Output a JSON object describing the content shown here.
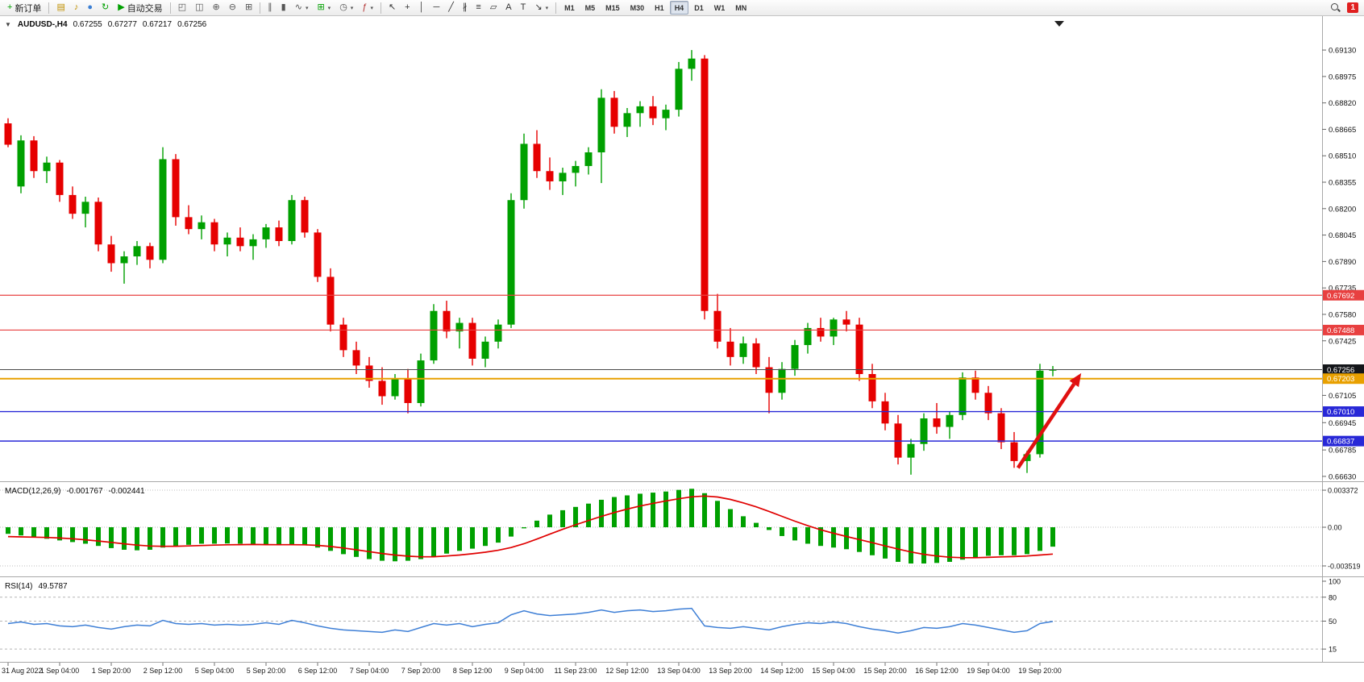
{
  "toolbar": {
    "items": [
      {
        "kind": "button",
        "name": "new-order-button",
        "glyph": "+",
        "glyph_color": "#00a000",
        "label": "新订单"
      },
      {
        "kind": "sep"
      },
      {
        "kind": "icon",
        "name": "charts-panel-icon",
        "glyph": "▤",
        "glyph_color": "#c09000"
      },
      {
        "kind": "icon",
        "name": "alerts-icon",
        "glyph": "♪",
        "glyph_color": "#c09000"
      },
      {
        "kind": "icon",
        "name": "community-icon",
        "glyph": "●",
        "glyph_color": "#3b7fd4"
      },
      {
        "kind": "icon",
        "name": "refresh-icon",
        "glyph": "↻",
        "glyph_color": "#00a000"
      },
      {
        "kind": "button",
        "name": "autotrading-button",
        "glyph": "▶",
        "glyph_color": "#00a000",
        "label": "自动交易"
      },
      {
        "kind": "sep"
      },
      {
        "kind": "icon",
        "name": "cascade-windows-icon",
        "glyph": "◰",
        "glyph_color": "#555"
      },
      {
        "kind": "icon",
        "name": "tile-windows-icon",
        "glyph": "◫",
        "glyph_color": "#555"
      },
      {
        "kind": "icon",
        "name": "zoom-in-button",
        "glyph": "⊕",
        "glyph_color": "#555"
      },
      {
        "kind": "icon",
        "name": "zoom-out-button",
        "glyph": "⊖",
        "glyph_color": "#555"
      },
      {
        "kind": "icon",
        "name": "tile-grid-icon",
        "glyph": "⊞",
        "glyph_color": "#555"
      },
      {
        "kind": "sep"
      },
      {
        "kind": "icon",
        "name": "bars-chart-icon",
        "glyph": "∥",
        "glyph_color": "#555"
      },
      {
        "kind": "icon",
        "name": "candlestick-chart-icon",
        "glyph": "▮",
        "glyph_color": "#555"
      },
      {
        "kind": "icon",
        "name": "line-chart-icon",
        "glyph": "∿",
        "glyph_color": "#555",
        "caret": true
      },
      {
        "kind": "icon",
        "name": "new-chart-button",
        "glyph": "⊞",
        "glyph_color": "#00a000",
        "caret": true
      },
      {
        "kind": "icon",
        "name": "period-clock-button",
        "glyph": "◷",
        "glyph_color": "#555",
        "caret": true
      },
      {
        "kind": "icon",
        "name": "indicators-button",
        "glyph": "ƒ",
        "glyph_color": "#b03030",
        "caret": true
      },
      {
        "kind": "sep"
      },
      {
        "kind": "icon",
        "name": "cursor-tool",
        "glyph": "↖",
        "glyph_color": "#333"
      },
      {
        "kind": "icon",
        "name": "crosshair-tool",
        "glyph": "+",
        "glyph_color": "#333"
      },
      {
        "kind": "icon",
        "name": "vertical-line-tool",
        "glyph": "│",
        "glyph_color": "#333"
      },
      {
        "kind": "icon",
        "name": "horizontal-line-tool",
        "glyph": "─",
        "glyph_color": "#333"
      },
      {
        "kind": "icon",
        "name": "trendline-tool",
        "glyph": "╱",
        "glyph_color": "#333"
      },
      {
        "kind": "icon",
        "name": "channel-tool",
        "glyph": "∦",
        "glyph_color": "#333"
      },
      {
        "kind": "icon",
        "name": "fibonacci-tool",
        "glyph": "≡",
        "glyph_color": "#333"
      },
      {
        "kind": "icon",
        "name": "shapes-tool",
        "glyph": "▱",
        "glyph_color": "#333"
      },
      {
        "kind": "icon",
        "name": "text-tool",
        "glyph": "A",
        "glyph_color": "#333"
      },
      {
        "kind": "icon",
        "name": "label-tool",
        "glyph": "T",
        "glyph_color": "#333"
      },
      {
        "kind": "icon",
        "name": "arrows-tool",
        "glyph": "↘",
        "glyph_color": "#333",
        "caret": true
      },
      {
        "kind": "sep"
      },
      {
        "kind": "tf",
        "name": "timeframe-m1",
        "label": "M1"
      },
      {
        "kind": "tf",
        "name": "timeframe-m5",
        "label": "M5"
      },
      {
        "kind": "tf",
        "name": "timeframe-m15",
        "label": "M15"
      },
      {
        "kind": "tf",
        "name": "timeframe-m30",
        "label": "M30"
      },
      {
        "kind": "tf",
        "name": "timeframe-h1",
        "label": "H1"
      },
      {
        "kind": "tf",
        "name": "timeframe-h4",
        "label": "H4",
        "active": true
      },
      {
        "kind": "tf",
        "name": "timeframe-d1",
        "label": "D1"
      },
      {
        "kind": "tf",
        "name": "timeframe-w1",
        "label": "W1"
      },
      {
        "kind": "tf",
        "name": "timeframe-mn",
        "label": "MN"
      },
      {
        "kind": "spacer"
      },
      {
        "kind": "search",
        "name": "search-icon"
      },
      {
        "kind": "badge",
        "name": "notification-badge",
        "label": "1"
      }
    ]
  },
  "chart_header": {
    "collapse_glyph": "▼",
    "title": "AUDUSD-,H4",
    "open": "0.67255",
    "high": "0.67277",
    "low": "0.67217",
    "close": "0.67256"
  },
  "chart_data": [
    {
      "type": "candlestick",
      "symbol": "AUDUSD-",
      "timeframe": "H4",
      "colors": {
        "bull": "#00A000",
        "bear": "#E60000",
        "background": "#FFFFFF"
      },
      "y_ticks": [
        "0.69130",
        "0.68975",
        "0.68820",
        "0.68665",
        "0.68510",
        "0.68355",
        "0.68200",
        "0.68045",
        "0.67890",
        "0.67735",
        "0.67580",
        "0.67425",
        "0.67105",
        "0.66945",
        "0.66785",
        "0.66630"
      ],
      "y_render_range": [
        0.66606,
        0.6931
      ],
      "x_labels": [
        "31 Aug 2022",
        "1 Sep 04:00",
        "1 Sep 20:00",
        "2 Sep 12:00",
        "5 Sep 04:00",
        "5 Sep 20:00",
        "6 Sep 12:00",
        "7 Sep 04:00",
        "7 Sep 20:00",
        "8 Sep 12:00",
        "9 Sep 04:00",
        "11 Sep 23:00",
        "12 Sep 12:00",
        "13 Sep 04:00",
        "13 Sep 20:00",
        "14 Sep 12:00",
        "15 Sep 04:00",
        "15 Sep 20:00",
        "16 Sep 12:00",
        "19 Sep 04:00",
        "19 Sep 20:00"
      ],
      "label_every_n_bars": 4,
      "candles": [
        [
          0.687,
          0.6873,
          0.6856,
          0.68575
        ],
        [
          0.6833,
          0.6863,
          0.6829,
          0.686
        ],
        [
          0.686,
          0.68625,
          0.6838,
          0.6842
        ],
        [
          0.6842,
          0.68505,
          0.6835,
          0.6847
        ],
        [
          0.6847,
          0.68485,
          0.6824,
          0.6828
        ],
        [
          0.6828,
          0.6833,
          0.6814,
          0.6817
        ],
        [
          0.6817,
          0.6827,
          0.6809,
          0.6824
        ],
        [
          0.6824,
          0.68265,
          0.6795,
          0.6799
        ],
        [
          0.6799,
          0.6804,
          0.6783,
          0.6788
        ],
        [
          0.6788,
          0.6795,
          0.6776,
          0.6792
        ],
        [
          0.6792,
          0.6801,
          0.6787,
          0.6798
        ],
        [
          0.6798,
          0.68,
          0.6785,
          0.679
        ],
        [
          0.679,
          0.6856,
          0.6788,
          0.6849
        ],
        [
          0.6849,
          0.6852,
          0.681,
          0.6815
        ],
        [
          0.6815,
          0.6822,
          0.6805,
          0.6808
        ],
        [
          0.6808,
          0.6816,
          0.6802,
          0.6812
        ],
        [
          0.6812,
          0.6814,
          0.6795,
          0.6799
        ],
        [
          0.6799,
          0.6806,
          0.6792,
          0.6803
        ],
        [
          0.6803,
          0.6809,
          0.6795,
          0.6798
        ],
        [
          0.6798,
          0.6805,
          0.679,
          0.6802
        ],
        [
          0.6802,
          0.6811,
          0.6797,
          0.6809
        ],
        [
          0.6809,
          0.6813,
          0.6798,
          0.6801
        ],
        [
          0.6801,
          0.6828,
          0.6799,
          0.6825
        ],
        [
          0.6825,
          0.6827,
          0.6803,
          0.6806
        ],
        [
          0.6806,
          0.6808,
          0.6777,
          0.678
        ],
        [
          0.678,
          0.6785,
          0.6748,
          0.6752
        ],
        [
          0.6752,
          0.6756,
          0.6733,
          0.6737
        ],
        [
          0.6737,
          0.6742,
          0.6723,
          0.6728
        ],
        [
          0.6728,
          0.6733,
          0.6715,
          0.6719
        ],
        [
          0.6719,
          0.6727,
          0.6705,
          0.671
        ],
        [
          0.671,
          0.6723,
          0.6708,
          0.672
        ],
        [
          0.672,
          0.6726,
          0.67,
          0.6706
        ],
        [
          0.6706,
          0.6735,
          0.6704,
          0.6731
        ],
        [
          0.6731,
          0.6764,
          0.6729,
          0.676
        ],
        [
          0.676,
          0.6766,
          0.6744,
          0.6748
        ],
        [
          0.6748,
          0.6756,
          0.6738,
          0.6753
        ],
        [
          0.6753,
          0.6756,
          0.6728,
          0.6732
        ],
        [
          0.6732,
          0.6745,
          0.6727,
          0.6742
        ],
        [
          0.6742,
          0.6755,
          0.6738,
          0.6752
        ],
        [
          0.6752,
          0.6829,
          0.675,
          0.6825
        ],
        [
          0.6825,
          0.6864,
          0.682,
          0.6858
        ],
        [
          0.6858,
          0.6866,
          0.6838,
          0.6842
        ],
        [
          0.6842,
          0.685,
          0.6831,
          0.6836
        ],
        [
          0.6836,
          0.6844,
          0.6828,
          0.6841
        ],
        [
          0.6841,
          0.6848,
          0.6833,
          0.6845
        ],
        [
          0.6845,
          0.6856,
          0.684,
          0.6853
        ],
        [
          0.6853,
          0.689,
          0.6835,
          0.6885
        ],
        [
          0.6885,
          0.6889,
          0.6864,
          0.6868
        ],
        [
          0.6868,
          0.6879,
          0.6862,
          0.6876
        ],
        [
          0.6876,
          0.6883,
          0.6868,
          0.688
        ],
        [
          0.688,
          0.6886,
          0.6869,
          0.6873
        ],
        [
          0.6873,
          0.6881,
          0.6866,
          0.6878
        ],
        [
          0.6878,
          0.6906,
          0.6874,
          0.6902
        ],
        [
          0.6902,
          0.6913,
          0.6895,
          0.6908
        ],
        [
          0.6908,
          0.691,
          0.6755,
          0.676
        ],
        [
          0.676,
          0.677,
          0.6738,
          0.6742
        ],
        [
          0.6742,
          0.675,
          0.6728,
          0.6733
        ],
        [
          0.6733,
          0.6745,
          0.6729,
          0.6741
        ],
        [
          0.6741,
          0.6744,
          0.6723,
          0.6727
        ],
        [
          0.6727,
          0.6733,
          0.67,
          0.6712
        ],
        [
          0.6712,
          0.673,
          0.6708,
          0.6726
        ],
        [
          0.6726,
          0.6743,
          0.6722,
          0.674
        ],
        [
          0.674,
          0.6753,
          0.6735,
          0.675
        ],
        [
          0.675,
          0.6756,
          0.6742,
          0.6745
        ],
        [
          0.6745,
          0.6756,
          0.674,
          0.6755
        ],
        [
          0.6755,
          0.676,
          0.6748,
          0.6752
        ],
        [
          0.6752,
          0.6756,
          0.6719,
          0.6723
        ],
        [
          0.6723,
          0.6729,
          0.6703,
          0.6707
        ],
        [
          0.6707,
          0.6712,
          0.669,
          0.6694
        ],
        [
          0.6694,
          0.6699,
          0.667,
          0.6674
        ],
        [
          0.6674,
          0.6685,
          0.6664,
          0.6682
        ],
        [
          0.6682,
          0.67,
          0.6678,
          0.6697
        ],
        [
          0.6697,
          0.6706,
          0.6688,
          0.6692
        ],
        [
          0.6692,
          0.6701,
          0.6685,
          0.6699
        ],
        [
          0.6699,
          0.6724,
          0.6696,
          0.6721
        ],
        [
          0.6721,
          0.6725,
          0.6708,
          0.6712
        ],
        [
          0.6712,
          0.6716,
          0.6696,
          0.67
        ],
        [
          0.67,
          0.6703,
          0.6679,
          0.6683
        ],
        [
          0.6683,
          0.6689,
          0.6668,
          0.6672
        ],
        [
          0.6672,
          0.6678,
          0.6665,
          0.6676
        ],
        [
          0.6676,
          0.6729,
          0.6674,
          0.6725
        ],
        [
          0.6725,
          0.67277,
          0.67217,
          0.67256
        ]
      ],
      "levels": [
        {
          "value": 0.67692,
          "label": "0.67692",
          "color": "#E84040",
          "width": 1.2
        },
        {
          "value": 0.67488,
          "label": "0.67488",
          "color": "#E84040",
          "width": 1.2
        },
        {
          "value": 0.67256,
          "label": "0.67256",
          "color": "#4A4A4A",
          "box": "#14161A",
          "width": 1
        },
        {
          "value": 0.67203,
          "label": "0.67203",
          "color": "#E8A000",
          "width": 2
        },
        {
          "value": 0.6701,
          "label": "0.67010",
          "color": "#2828D7",
          "width": 1.4
        },
        {
          "value": 0.66837,
          "label": "0.66837",
          "color": "#2828D7",
          "width": 1.4
        }
      ],
      "annotation_arrow": {
        "from": {
          "bar": 78.3,
          "price": 0.6668
        },
        "to": {
          "bar": 83.2,
          "price": 0.67235
        },
        "color": "#E01010",
        "width": 4.5
      },
      "shift_marker_bar": 81.5
    },
    {
      "type": "bar",
      "name": "MACD",
      "label": "MACD(12,26,9)",
      "value_main": "-0.001767",
      "value_signal": "-0.002441",
      "colors": {
        "histogram": "#00A000",
        "signal": "#E00000"
      },
      "y_ticks": [
        "0.003372",
        "0.00",
        "-0.003519"
      ],
      "y_tick_values": [
        0.003372,
        0,
        -0.003519
      ],
      "y_render_range": [
        -0.0044,
        0.00389
      ],
      "histogram": [
        -0.0006,
        -0.00075,
        -0.0009,
        -0.00105,
        -0.0012,
        -0.00135,
        -0.0015,
        -0.0017,
        -0.0019,
        -0.00205,
        -0.0021,
        -0.00205,
        -0.00185,
        -0.0017,
        -0.0016,
        -0.0015,
        -0.0015,
        -0.00148,
        -0.0015,
        -0.00155,
        -0.0016,
        -0.00165,
        -0.0016,
        -0.00165,
        -0.00185,
        -0.00215,
        -0.00245,
        -0.0027,
        -0.0029,
        -0.00305,
        -0.0031,
        -0.00305,
        -0.0029,
        -0.00265,
        -0.0024,
        -0.00215,
        -0.00195,
        -0.0017,
        -0.0014,
        -0.00085,
        -0.0001,
        0.0006,
        0.00115,
        0.00155,
        0.00185,
        0.00215,
        0.0025,
        0.00275,
        0.0029,
        0.00305,
        0.00315,
        0.00325,
        0.0034,
        0.0035,
        0.0031,
        0.0024,
        0.00165,
        0.001,
        0.0004,
        -0.00025,
        -0.0008,
        -0.0012,
        -0.0015,
        -0.0017,
        -0.00185,
        -0.002,
        -0.00225,
        -0.00255,
        -0.00285,
        -0.00315,
        -0.0033,
        -0.0033,
        -0.00325,
        -0.00315,
        -0.00295,
        -0.00275,
        -0.0026,
        -0.00255,
        -0.00255,
        -0.00245,
        -0.00215,
        -0.001767
      ],
      "signal": [
        -0.00085,
        -0.00088,
        -0.0009,
        -0.00093,
        -0.00098,
        -0.00105,
        -0.00114,
        -0.00125,
        -0.00138,
        -0.00151,
        -0.00163,
        -0.00171,
        -0.00174,
        -0.00173,
        -0.0017,
        -0.00166,
        -0.00163,
        -0.0016,
        -0.00158,
        -0.00157,
        -0.00158,
        -0.00159,
        -0.00159,
        -0.0016,
        -0.00165,
        -0.00175,
        -0.00189,
        -0.00205,
        -0.00222,
        -0.00239,
        -0.00253,
        -0.00263,
        -0.00269,
        -0.00268,
        -0.00262,
        -0.00253,
        -0.00241,
        -0.00227,
        -0.0021,
        -0.00185,
        -0.0015,
        -0.00108,
        -0.00063,
        -0.00019,
        0.00022,
        0.00061,
        0.00099,
        0.00134,
        0.00165,
        0.00193,
        0.00217,
        0.00239,
        0.00259,
        0.00277,
        0.00284,
        0.00275,
        0.00253,
        0.00222,
        0.00186,
        0.00144,
        0.00099,
        0.00055,
        0.00014,
        -0.00023,
        -0.00055,
        -0.00084,
        -0.00112,
        -0.00141,
        -0.0017,
        -0.00199,
        -0.00225,
        -0.00246,
        -0.00262,
        -0.00273,
        -0.00277,
        -0.00277,
        -0.00274,
        -0.0027,
        -0.00267,
        -0.00262,
        -0.00253,
        -0.002441
      ]
    },
    {
      "type": "line",
      "name": "RSI",
      "label": "RSI(14)",
      "value_display": "49.5787",
      "color": "#3E7FD6",
      "y_ticks": [
        "100",
        "80",
        "50",
        "15"
      ],
      "y_tick_values": [
        100,
        80,
        50,
        15
      ],
      "level_lines": [
        80,
        50,
        15
      ],
      "y_render_range": [
        0,
        102
      ],
      "values": [
        47,
        49,
        46,
        47,
        44,
        43,
        45,
        42,
        40,
        43,
        45,
        44,
        51,
        47,
        46,
        47,
        45,
        46,
        45,
        46,
        48,
        46,
        51,
        48,
        44,
        41,
        39,
        38,
        37,
        36,
        39,
        37,
        42,
        47,
        45,
        47,
        43,
        46,
        48,
        58,
        63,
        59,
        57,
        58,
        59,
        61,
        64,
        61,
        63,
        64,
        62,
        63,
        65,
        66,
        44,
        42,
        41,
        43,
        41,
        39,
        43,
        46,
        48,
        47,
        49,
        47,
        43,
        40,
        38,
        35,
        38,
        42,
        41,
        43,
        47,
        45,
        42,
        39,
        36,
        38,
        47,
        49.58
      ]
    }
  ]
}
